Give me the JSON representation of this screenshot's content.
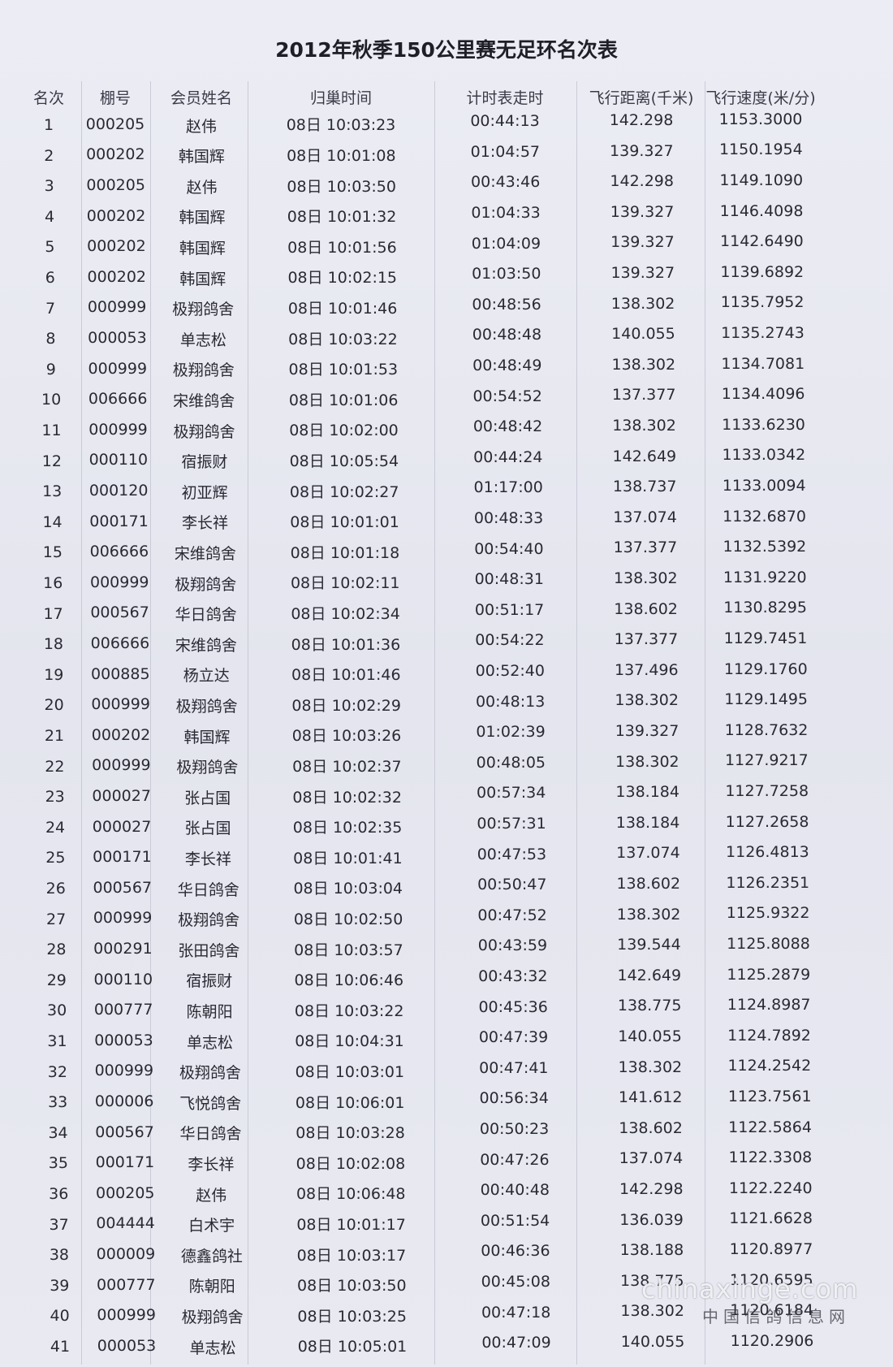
{
  "header": {
    "title": "2012年秋季150公里赛无足环名次表"
  },
  "table": {
    "columns": [
      "名次",
      "棚号",
      "会员姓名",
      "归巢时间",
      "计时表走时",
      "飞行距离(千米)",
      "飞行速度(米/分)"
    ],
    "rows": [
      [
        "1",
        "000205",
        "赵伟",
        "08日 10:03:23",
        "00:44:13",
        "142.298",
        "1153.3000"
      ],
      [
        "2",
        "000202",
        "韩国辉",
        "08日 10:01:08",
        "01:04:57",
        "139.327",
        "1150.1954"
      ],
      [
        "3",
        "000205",
        "赵伟",
        "08日 10:03:50",
        "00:43:46",
        "142.298",
        "1149.1090"
      ],
      [
        "4",
        "000202",
        "韩国辉",
        "08日 10:01:32",
        "01:04:33",
        "139.327",
        "1146.4098"
      ],
      [
        "5",
        "000202",
        "韩国辉",
        "08日 10:01:56",
        "01:04:09",
        "139.327",
        "1142.6490"
      ],
      [
        "6",
        "000202",
        "韩国辉",
        "08日 10:02:15",
        "01:03:50",
        "139.327",
        "1139.6892"
      ],
      [
        "7",
        "000999",
        "极翔鸽舍",
        "08日 10:01:46",
        "00:48:56",
        "138.302",
        "1135.7952"
      ],
      [
        "8",
        "000053",
        "单志松",
        "08日 10:03:22",
        "00:48:48",
        "140.055",
        "1135.2743"
      ],
      [
        "9",
        "000999",
        "极翔鸽舍",
        "08日 10:01:53",
        "00:48:49",
        "138.302",
        "1134.7081"
      ],
      [
        "10",
        "006666",
        "宋维鸽舍",
        "08日 10:01:06",
        "00:54:52",
        "137.377",
        "1134.4096"
      ],
      [
        "11",
        "000999",
        "极翔鸽舍",
        "08日 10:02:00",
        "00:48:42",
        "138.302",
        "1133.6230"
      ],
      [
        "12",
        "000110",
        "宿振财",
        "08日 10:05:54",
        "00:44:24",
        "142.649",
        "1133.0342"
      ],
      [
        "13",
        "000120",
        "初亚辉",
        "08日 10:02:27",
        "01:17:00",
        "138.737",
        "1133.0094"
      ],
      [
        "14",
        "000171",
        "李长祥",
        "08日 10:01:01",
        "00:48:33",
        "137.074",
        "1132.6870"
      ],
      [
        "15",
        "006666",
        "宋维鸽舍",
        "08日 10:01:18",
        "00:54:40",
        "137.377",
        "1132.5392"
      ],
      [
        "16",
        "000999",
        "极翔鸽舍",
        "08日 10:02:11",
        "00:48:31",
        "138.302",
        "1131.9220"
      ],
      [
        "17",
        "000567",
        "华日鸽舍",
        "08日 10:02:34",
        "00:51:17",
        "138.602",
        "1130.8295"
      ],
      [
        "18",
        "006666",
        "宋维鸽舍",
        "08日 10:01:36",
        "00:54:22",
        "137.377",
        "1129.7451"
      ],
      [
        "19",
        "000885",
        "杨立达",
        "08日 10:01:46",
        "00:52:40",
        "137.496",
        "1129.1760"
      ],
      [
        "20",
        "000999",
        "极翔鸽舍",
        "08日 10:02:29",
        "00:48:13",
        "138.302",
        "1129.1495"
      ],
      [
        "21",
        "000202",
        "韩国辉",
        "08日 10:03:26",
        "01:02:39",
        "139.327",
        "1128.7632"
      ],
      [
        "22",
        "000999",
        "极翔鸽舍",
        "08日 10:02:37",
        "00:48:05",
        "138.302",
        "1127.9217"
      ],
      [
        "23",
        "000027",
        "张占国",
        "08日 10:02:32",
        "00:57:34",
        "138.184",
        "1127.7258"
      ],
      [
        "24",
        "000027",
        "张占国",
        "08日 10:02:35",
        "00:57:31",
        "138.184",
        "1127.2658"
      ],
      [
        "25",
        "000171",
        "李长祥",
        "08日 10:01:41",
        "00:47:53",
        "137.074",
        "1126.4813"
      ],
      [
        "26",
        "000567",
        "华日鸽舍",
        "08日 10:03:04",
        "00:50:47",
        "138.602",
        "1126.2351"
      ],
      [
        "27",
        "000999",
        "极翔鸽舍",
        "08日 10:02:50",
        "00:47:52",
        "138.302",
        "1125.9322"
      ],
      [
        "28",
        "000291",
        "张田鸽舍",
        "08日 10:03:57",
        "00:43:59",
        "139.544",
        "1125.8088"
      ],
      [
        "29",
        "000110",
        "宿振财",
        "08日 10:06:46",
        "00:43:32",
        "142.649",
        "1125.2879"
      ],
      [
        "30",
        "000777",
        "陈朝阳",
        "08日 10:03:22",
        "00:45:36",
        "138.775",
        "1124.8987"
      ],
      [
        "31",
        "000053",
        "单志松",
        "08日 10:04:31",
        "00:47:39",
        "140.055",
        "1124.7892"
      ],
      [
        "32",
        "000999",
        "极翔鸽舍",
        "08日 10:03:01",
        "00:47:41",
        "138.302",
        "1124.2542"
      ],
      [
        "33",
        "000006",
        "飞悦鸽舍",
        "08日 10:06:01",
        "00:56:34",
        "141.612",
        "1123.7561"
      ],
      [
        "34",
        "000567",
        "华日鸽舍",
        "08日 10:03:28",
        "00:50:23",
        "138.602",
        "1122.5864"
      ],
      [
        "35",
        "000171",
        "李长祥",
        "08日 10:02:08",
        "00:47:26",
        "137.074",
        "1122.3308"
      ],
      [
        "36",
        "000205",
        "赵伟",
        "08日 10:06:48",
        "00:40:48",
        "142.298",
        "1122.2240"
      ],
      [
        "37",
        "004444",
        "白术宇",
        "08日 10:01:17",
        "00:51:54",
        "136.039",
        "1121.6628"
      ],
      [
        "38",
        "000009",
        "德鑫鸽社",
        "08日 10:03:17",
        "00:46:36",
        "138.188",
        "1120.8977"
      ],
      [
        "39",
        "000777",
        "陈朝阳",
        "08日 10:03:50",
        "00:45:08",
        "138.775",
        "1120.6595"
      ],
      [
        "40",
        "000999",
        "极翔鸽舍",
        "08日 10:03:25",
        "00:47:18",
        "138.302",
        "1120.6184"
      ],
      [
        "41",
        "000053",
        "单志松",
        "08日 10:05:01",
        "00:47:09",
        "140.055",
        "1120.2906"
      ]
    ]
  },
  "watermark": {
    "url": "chinaxinge.com",
    "site": "中国信鸽信息网"
  }
}
